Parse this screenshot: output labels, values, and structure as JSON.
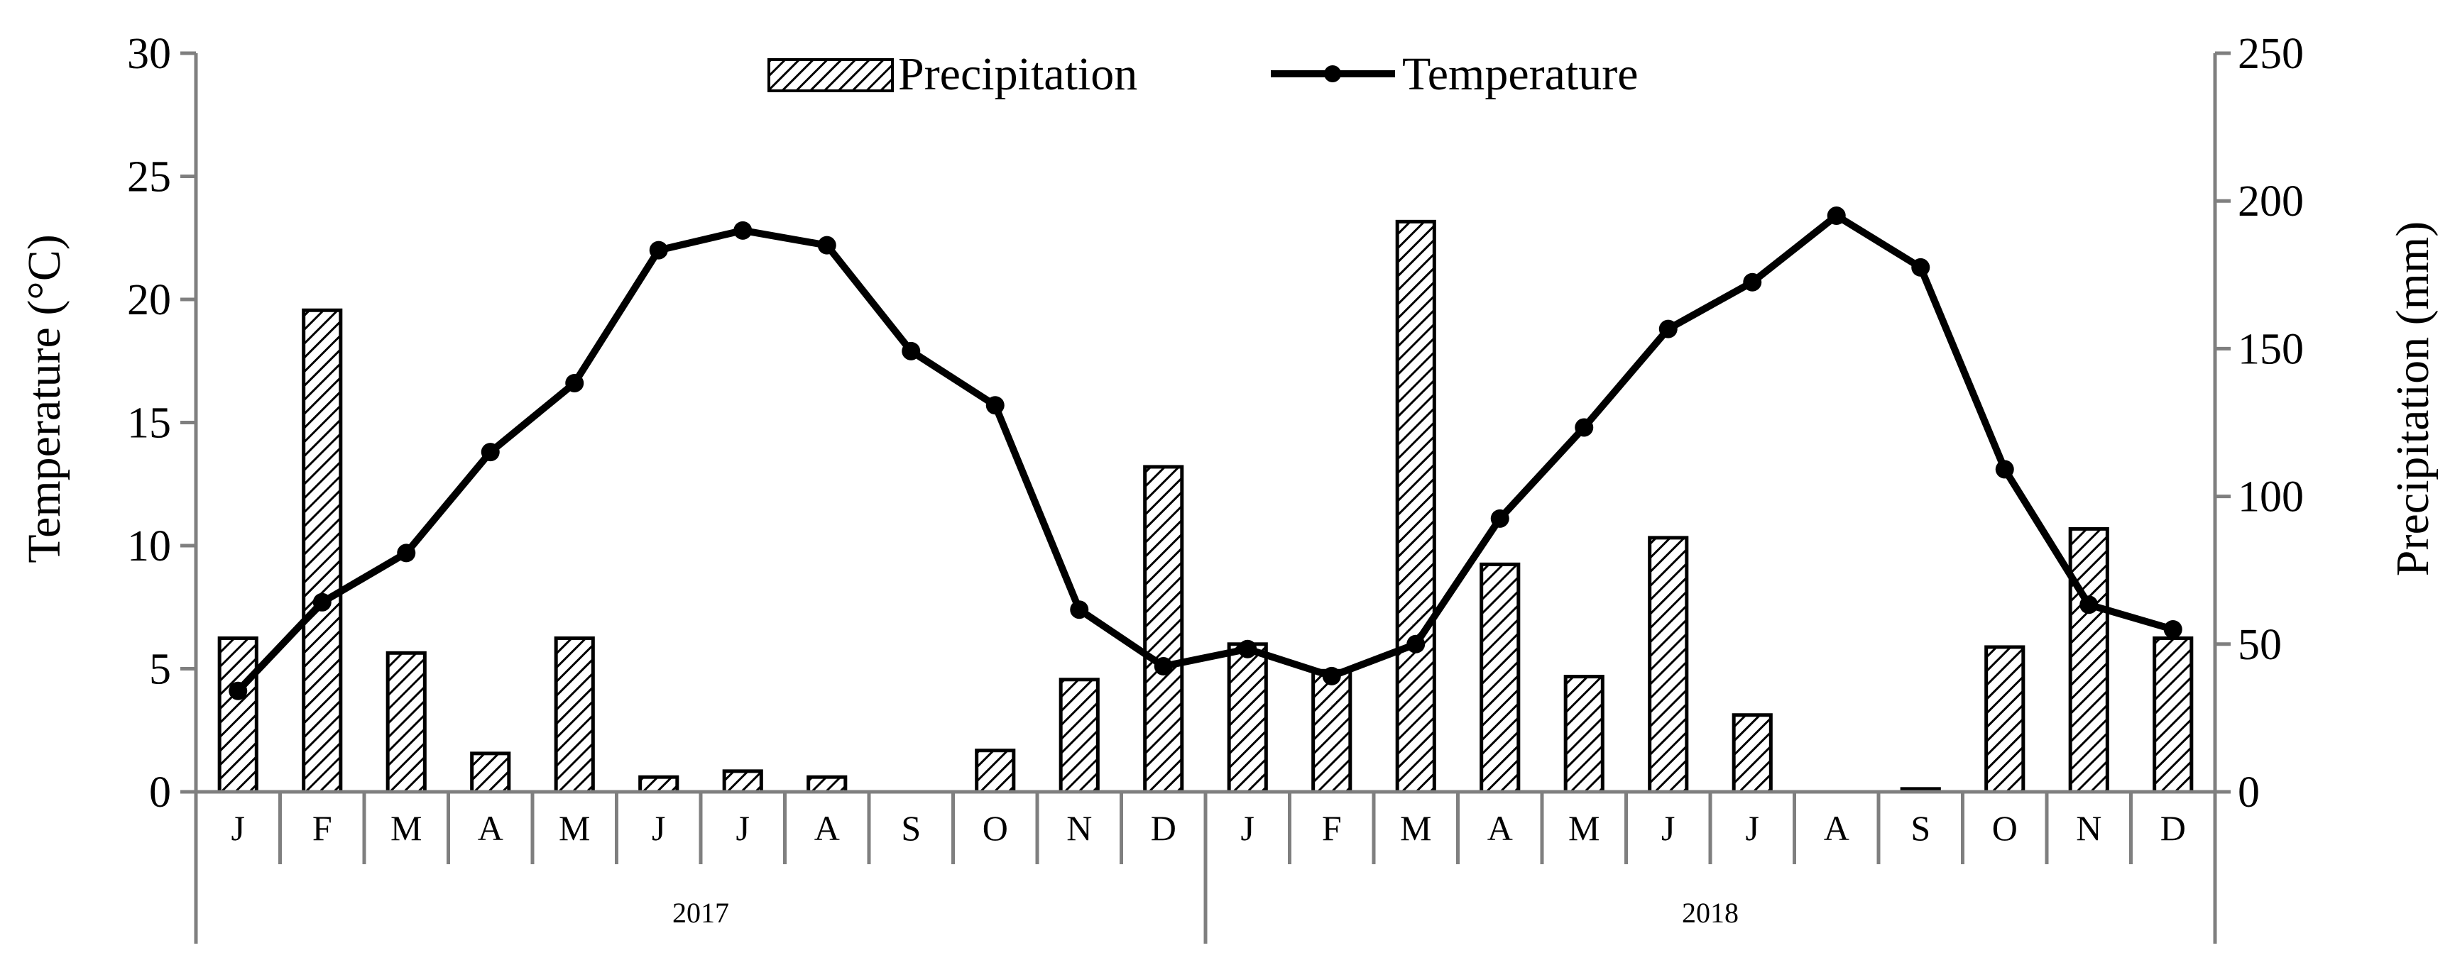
{
  "chart_data": {
    "type": "bar+line",
    "categories": [
      "J",
      "F",
      "M",
      "A",
      "M",
      "J",
      "J",
      "A",
      "S",
      "O",
      "N",
      "D",
      "J",
      "F",
      "M",
      "A",
      "M",
      "J",
      "J",
      "A",
      "S",
      "O",
      "N",
      "D"
    ],
    "groups": [
      {
        "label": "2017",
        "start": 0,
        "end": 11
      },
      {
        "label": "2018",
        "start": 12,
        "end": 23
      }
    ],
    "series": [
      {
        "name": "Precipitation",
        "type": "bar",
        "axis": "right",
        "pattern": "diagonal-hatch",
        "values": [
          52,
          163,
          47,
          13,
          52,
          5,
          7,
          5,
          0,
          14,
          38,
          110,
          50,
          41,
          193,
          77,
          39,
          86,
          26,
          0,
          1,
          49,
          89,
          52
        ]
      },
      {
        "name": "Temperature",
        "type": "line",
        "axis": "left",
        "values": [
          4.1,
          7.7,
          9.7,
          13.8,
          16.6,
          22.0,
          22.8,
          22.2,
          17.9,
          15.7,
          7.4,
          5.1,
          5.8,
          4.7,
          6.0,
          11.1,
          14.8,
          18.8,
          20.7,
          23.4,
          21.3,
          13.1,
          7.6,
          6.6
        ]
      }
    ],
    "ylabel": "Temperature (°C)",
    "ylim": [
      0,
      30
    ],
    "yticks": [
      0,
      5,
      10,
      15,
      20,
      25,
      30
    ],
    "y2label": "Precipitation (mm)",
    "y2lim": [
      0,
      250
    ],
    "y2ticks": [
      0,
      50,
      100,
      150,
      200,
      250
    ],
    "legend_position": "top-center",
    "grid": false,
    "colors": {
      "line": "#000000",
      "bar_edge": "#000000",
      "axis": "#7f7f7f"
    }
  }
}
